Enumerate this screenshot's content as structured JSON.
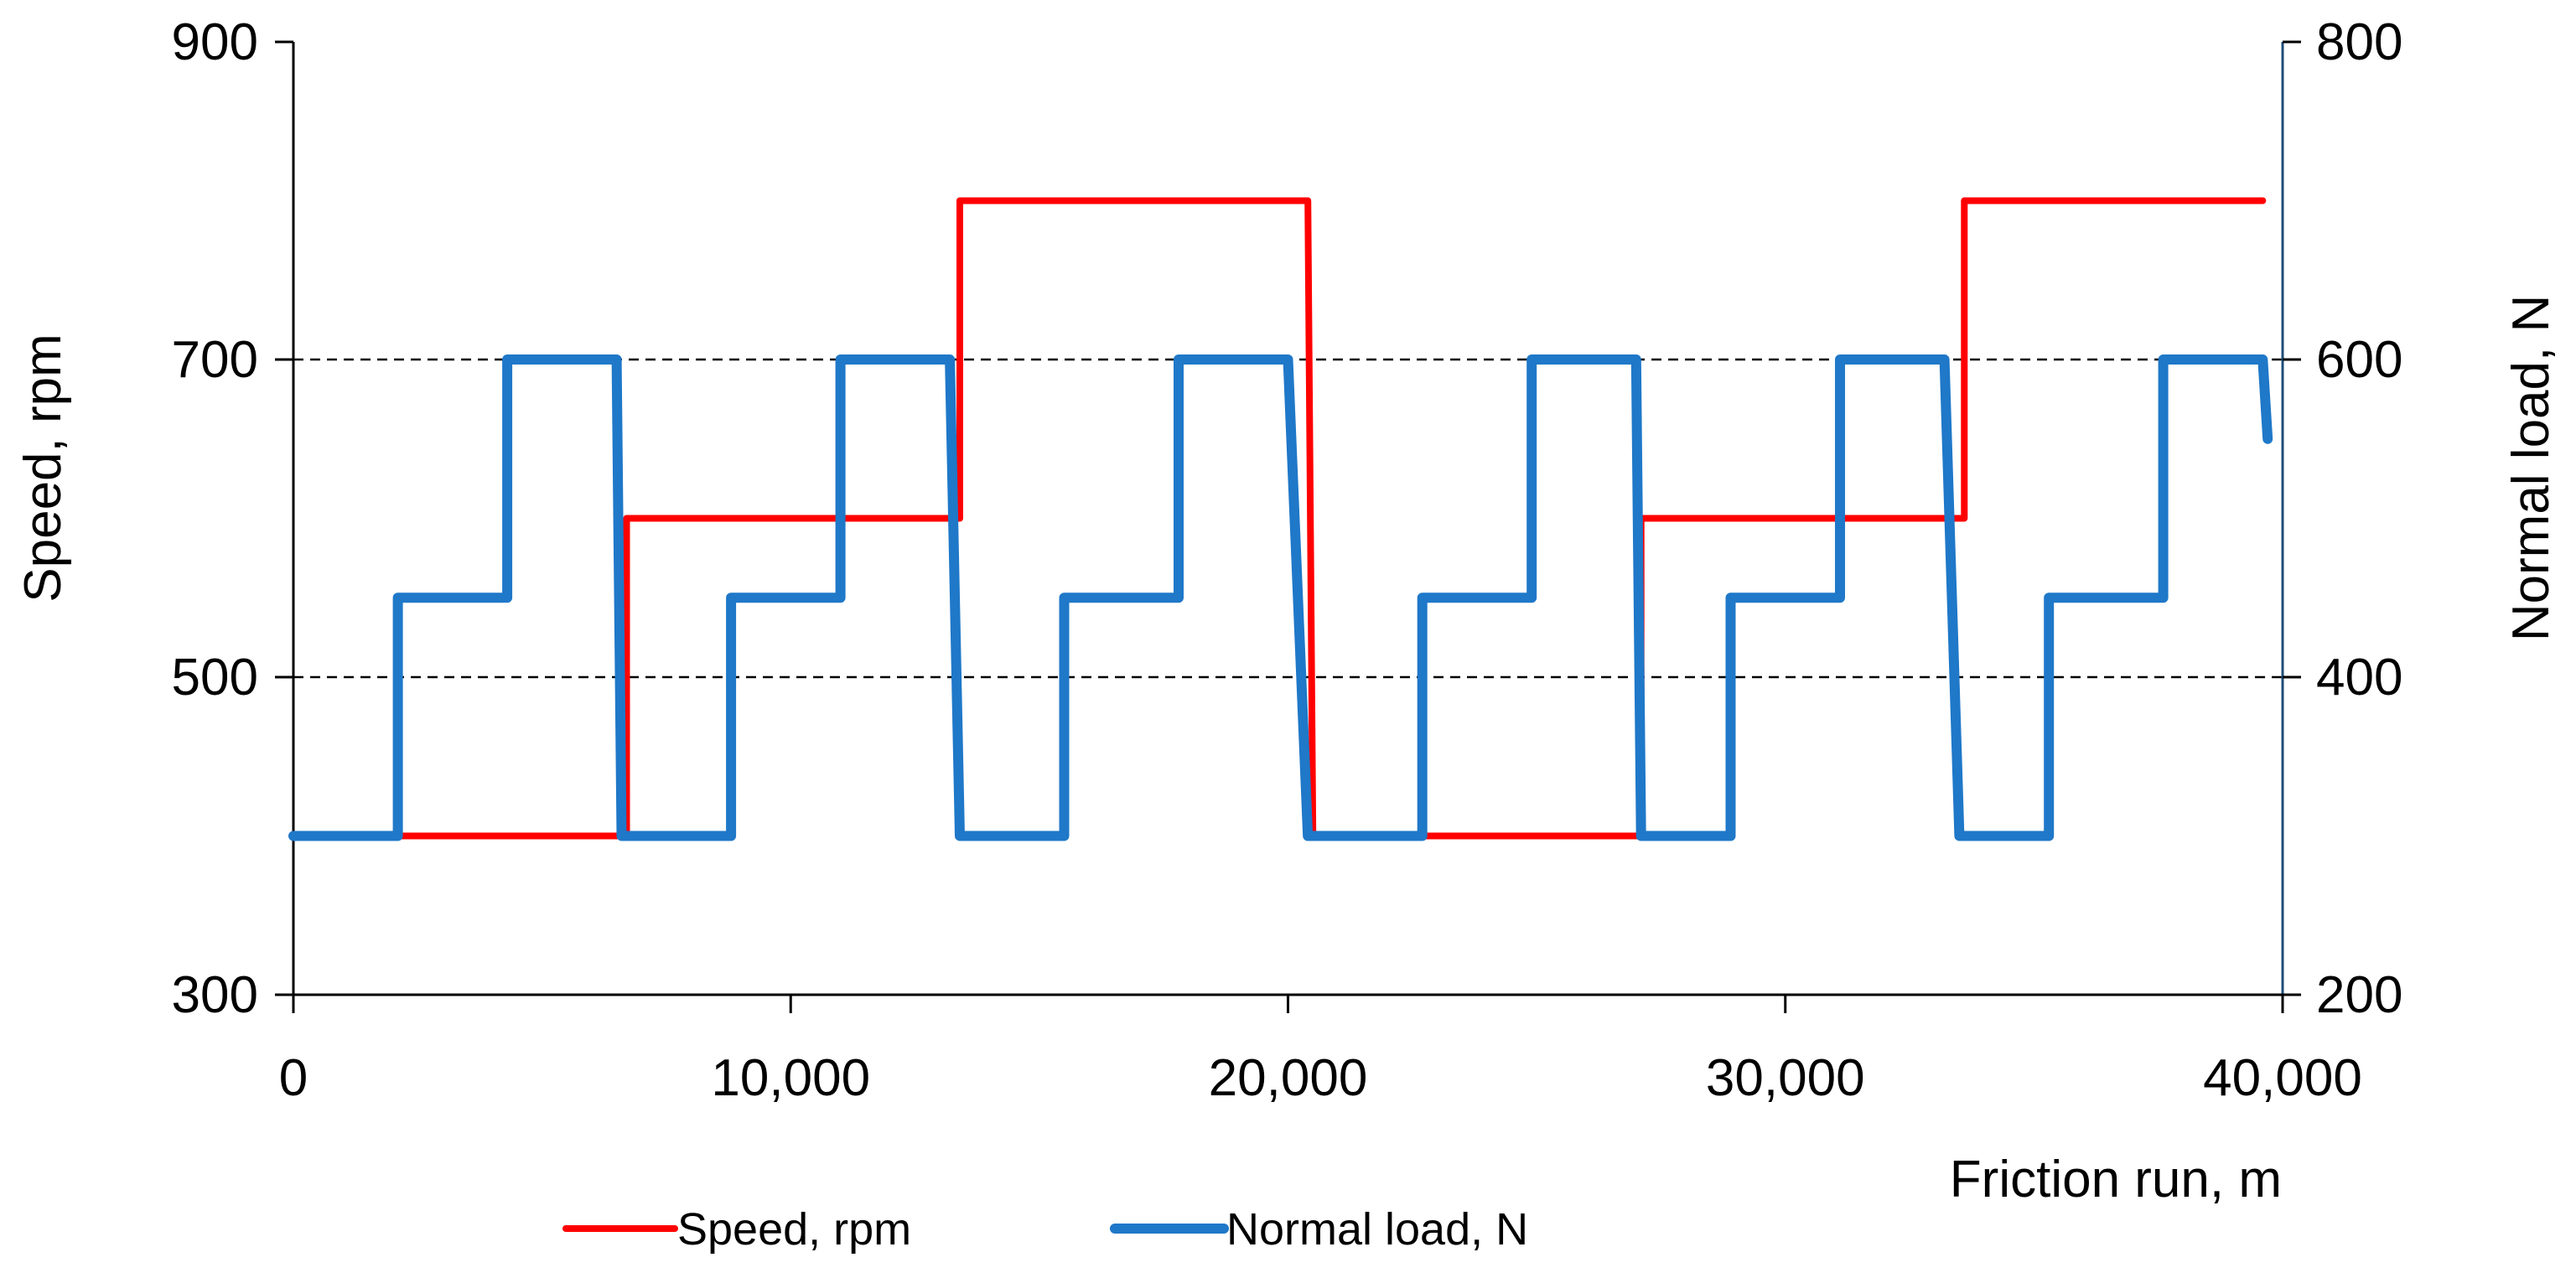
{
  "chart_data": {
    "type": "line",
    "title": "",
    "xlabel": "Friction run, m",
    "ylabel": "Speed, rpm",
    "y2label": "Normal load, N",
    "xlim": [
      0,
      40000
    ],
    "ylim": [
      300,
      900
    ],
    "y2lim": [
      200,
      800
    ],
    "x_ticks": [
      0,
      10000,
      20000,
      30000,
      40000
    ],
    "x_tick_labels": [
      "0",
      "10,000",
      "20,000",
      "30,000",
      "40,000"
    ],
    "y_ticks": [
      300,
      500,
      700,
      900
    ],
    "y_tick_labels": [
      "300",
      "500",
      "700",
      "900"
    ],
    "y2_ticks": [
      200,
      400,
      600,
      800
    ],
    "y2_tick_labels": [
      "200",
      "400",
      "600",
      "800"
    ],
    "grid": "horizontal dashed at 500 and 700",
    "legend_position": "bottom",
    "series": [
      {
        "name": "Speed, rpm",
        "axis": "left",
        "color": "#ff0000",
        "points": [
          [
            0,
            400
          ],
          [
            6700,
            400
          ],
          [
            6700,
            600
          ],
          [
            13400,
            600
          ],
          [
            13400,
            800
          ],
          [
            20400,
            800
          ],
          [
            20500,
            400
          ],
          [
            27100,
            400
          ],
          [
            27100,
            600
          ],
          [
            33600,
            600
          ],
          [
            33600,
            800
          ],
          [
            39600,
            800
          ]
        ]
      },
      {
        "name": "Normal load, N",
        "axis": "right",
        "color": "#1f78c8",
        "points": [
          [
            0,
            300
          ],
          [
            2100,
            300
          ],
          [
            2100,
            450
          ],
          [
            4300,
            450
          ],
          [
            4300,
            600
          ],
          [
            6500,
            600
          ],
          [
            6600,
            300
          ],
          [
            8800,
            300
          ],
          [
            8800,
            450
          ],
          [
            11000,
            450
          ],
          [
            11000,
            600
          ],
          [
            13200,
            600
          ],
          [
            13400,
            300
          ],
          [
            15500,
            300
          ],
          [
            15500,
            450
          ],
          [
            17800,
            450
          ],
          [
            17800,
            600
          ],
          [
            20000,
            600
          ],
          [
            20400,
            300
          ],
          [
            22700,
            300
          ],
          [
            22700,
            450
          ],
          [
            24900,
            450
          ],
          [
            24900,
            600
          ],
          [
            27000,
            600
          ],
          [
            27100,
            300
          ],
          [
            28900,
            300
          ],
          [
            28900,
            450
          ],
          [
            31100,
            450
          ],
          [
            31100,
            600
          ],
          [
            33200,
            600
          ],
          [
            33500,
            300
          ],
          [
            35300,
            300
          ],
          [
            35300,
            450
          ],
          [
            37600,
            450
          ],
          [
            37600,
            600
          ],
          [
            39600,
            600
          ],
          [
            39700,
            550
          ]
        ]
      }
    ]
  }
}
